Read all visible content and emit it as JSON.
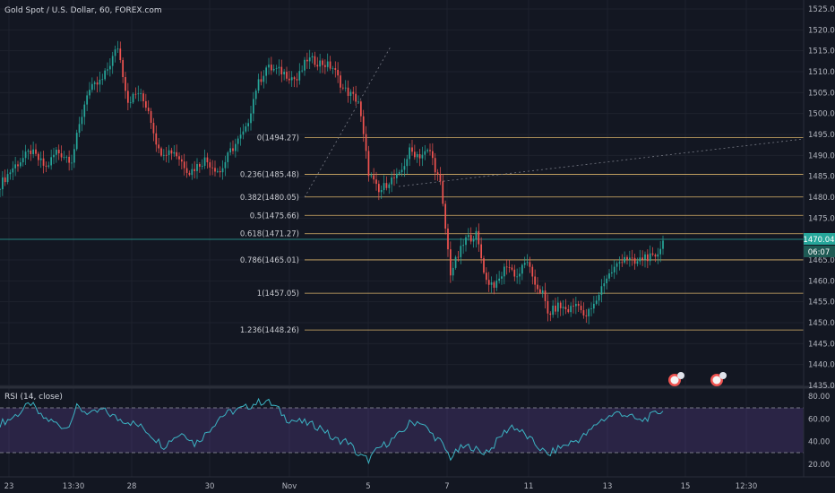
{
  "header": {
    "title": "Gold Spot / U.S. Dollar, 60, FOREX.com"
  },
  "rsi_header": {
    "label": "RSI (14, close)"
  },
  "price_badge": {
    "price": "1470.04",
    "countdown": "06:07"
  },
  "colors": {
    "up": "#26a69a",
    "down": "#ef5350",
    "fib": "#d9b36a",
    "rsi": "#3bb3c3",
    "rsi_band": "#7e57c2",
    "price_line": "#26a69a"
  },
  "chart_data": [
    {
      "type": "candlestick",
      "title": "Gold Spot / U.S. Dollar, 60, FOREX.com",
      "ylim": [
        1435,
        1525
      ],
      "y_ticks": [
        "1525.00",
        "1520.00",
        "1515.00",
        "1510.00",
        "1505.00",
        "1500.00",
        "1495.00",
        "1490.00",
        "1485.00",
        "1480.00",
        "1475.00",
        "1470.00",
        "1465.00",
        "1460.00",
        "1455.00",
        "1450.00",
        "1445.00",
        "1440.00",
        "1435.00"
      ],
      "x_ticks": [
        "23",
        "13:30",
        "28",
        "30",
        "Nov",
        "5",
        "7",
        "11",
        "13",
        "15",
        "12:30"
      ],
      "last_price": 1470.04,
      "anchors": [
        [
          0,
          1483
        ],
        [
          5,
          1487
        ],
        [
          12,
          1491
        ],
        [
          18,
          1487
        ],
        [
          22,
          1491
        ],
        [
          28,
          1489
        ],
        [
          34,
          1505
        ],
        [
          40,
          1508
        ],
        [
          46,
          1516
        ],
        [
          50,
          1503
        ],
        [
          54,
          1505
        ],
        [
          58,
          1501
        ],
        [
          62,
          1491
        ],
        [
          68,
          1491
        ],
        [
          74,
          1486
        ],
        [
          80,
          1489
        ],
        [
          86,
          1486
        ],
        [
          90,
          1491
        ],
        [
          96,
          1496
        ],
        [
          100,
          1506
        ],
        [
          104,
          1511
        ],
        [
          110,
          1510
        ],
        [
          116,
          1508
        ],
        [
          120,
          1513
        ],
        [
          126,
          1512
        ],
        [
          130,
          1511
        ],
        [
          134,
          1506
        ],
        [
          140,
          1503
        ],
        [
          144,
          1486
        ],
        [
          148,
          1481
        ],
        [
          152,
          1484
        ],
        [
          156,
          1485
        ],
        [
          160,
          1491
        ],
        [
          164,
          1490
        ],
        [
          168,
          1491
        ],
        [
          172,
          1483
        ],
        [
          176,
          1462
        ],
        [
          182,
          1470
        ],
        [
          186,
          1471
        ],
        [
          190,
          1460
        ],
        [
          194,
          1459
        ],
        [
          198,
          1464
        ],
        [
          202,
          1461
        ],
        [
          206,
          1465
        ],
        [
          208,
          1460
        ],
        [
          212,
          1457
        ],
        [
          214,
          1452
        ],
        [
          218,
          1454
        ],
        [
          222,
          1453
        ],
        [
          226,
          1455
        ],
        [
          228,
          1451
        ],
        [
          232,
          1454
        ],
        [
          236,
          1460
        ],
        [
          240,
          1463
        ],
        [
          244,
          1466
        ],
        [
          248,
          1464
        ],
        [
          252,
          1466
        ],
        [
          256,
          1465
        ],
        [
          259,
          1470
        ]
      ],
      "fib_levels": [
        {
          "ratio": "0",
          "price": 1494.27,
          "label": "0(1494.27)"
        },
        {
          "ratio": "0.236",
          "price": 1485.48,
          "label": "0.236(1485.48)"
        },
        {
          "ratio": "0.382",
          "price": 1480.05,
          "label": "0.382(1480.05)"
        },
        {
          "ratio": "0.5",
          "price": 1475.66,
          "label": "0.5(1475.66)"
        },
        {
          "ratio": "0.618",
          "price": 1471.27,
          "label": "0.618(1471.27)"
        },
        {
          "ratio": "0.786",
          "price": 1465.01,
          "label": "0.786(1465.01)"
        },
        {
          "ratio": "1",
          "price": 1457.05,
          "label": "1(1457.05)"
        },
        {
          "ratio": "1.236",
          "price": 1448.26,
          "label": "1.236(1448.26)"
        }
      ]
    },
    {
      "type": "line",
      "title": "RSI (14, close)",
      "ylim": [
        14,
        86
      ],
      "y_ticks": [
        "80.00",
        "60.00",
        "40.00",
        "20.00"
      ],
      "bands": [
        30,
        70
      ],
      "anchors": [
        [
          0,
          56
        ],
        [
          4,
          60
        ],
        [
          8,
          66
        ],
        [
          12,
          74
        ],
        [
          16,
          62
        ],
        [
          20,
          58
        ],
        [
          26,
          52
        ],
        [
          30,
          70
        ],
        [
          36,
          64
        ],
        [
          40,
          68
        ],
        [
          46,
          60
        ],
        [
          50,
          58
        ],
        [
          56,
          52
        ],
        [
          60,
          44
        ],
        [
          64,
          36
        ],
        [
          68,
          44
        ],
        [
          72,
          48
        ],
        [
          76,
          38
        ],
        [
          80,
          46
        ],
        [
          86,
          62
        ],
        [
          90,
          66
        ],
        [
          96,
          70
        ],
        [
          100,
          74
        ],
        [
          104,
          76
        ],
        [
          108,
          70
        ],
        [
          112,
          60
        ],
        [
          116,
          58
        ],
        [
          120,
          56
        ],
        [
          126,
          52
        ],
        [
          130,
          42
        ],
        [
          136,
          40
        ],
        [
          140,
          28
        ],
        [
          144,
          24
        ],
        [
          148,
          34
        ],
        [
          152,
          40
        ],
        [
          156,
          46
        ],
        [
          160,
          56
        ],
        [
          164,
          58
        ],
        [
          168,
          48
        ],
        [
          172,
          40
        ],
        [
          176,
          26
        ],
        [
          180,
          34
        ],
        [
          184,
          36
        ],
        [
          188,
          30
        ],
        [
          192,
          34
        ],
        [
          196,
          46
        ],
        [
          200,
          54
        ],
        [
          204,
          48
        ],
        [
          206,
          44
        ],
        [
          210,
          36
        ],
        [
          214,
          28
        ],
        [
          218,
          34
        ],
        [
          222,
          38
        ],
        [
          226,
          42
        ],
        [
          230,
          48
        ],
        [
          234,
          58
        ],
        [
          238,
          62
        ],
        [
          242,
          66
        ],
        [
          246,
          62
        ],
        [
          250,
          58
        ],
        [
          254,
          62
        ],
        [
          259,
          68
        ]
      ]
    }
  ]
}
